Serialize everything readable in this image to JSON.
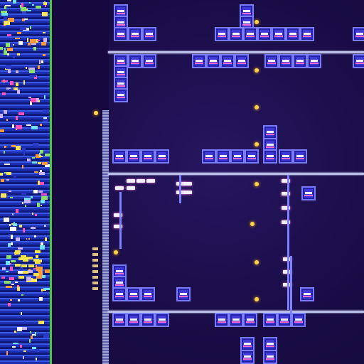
{
  "image": {
    "description_visible_text": "",
    "palette": {
      "background": "#1c0f4a",
      "cell_fill": "#3f39d6",
      "cell_border": "#7a7cff",
      "rail": "#b9bde8",
      "dot": "#ffd34a",
      "left_strip_green": "#49c93a"
    }
  }
}
